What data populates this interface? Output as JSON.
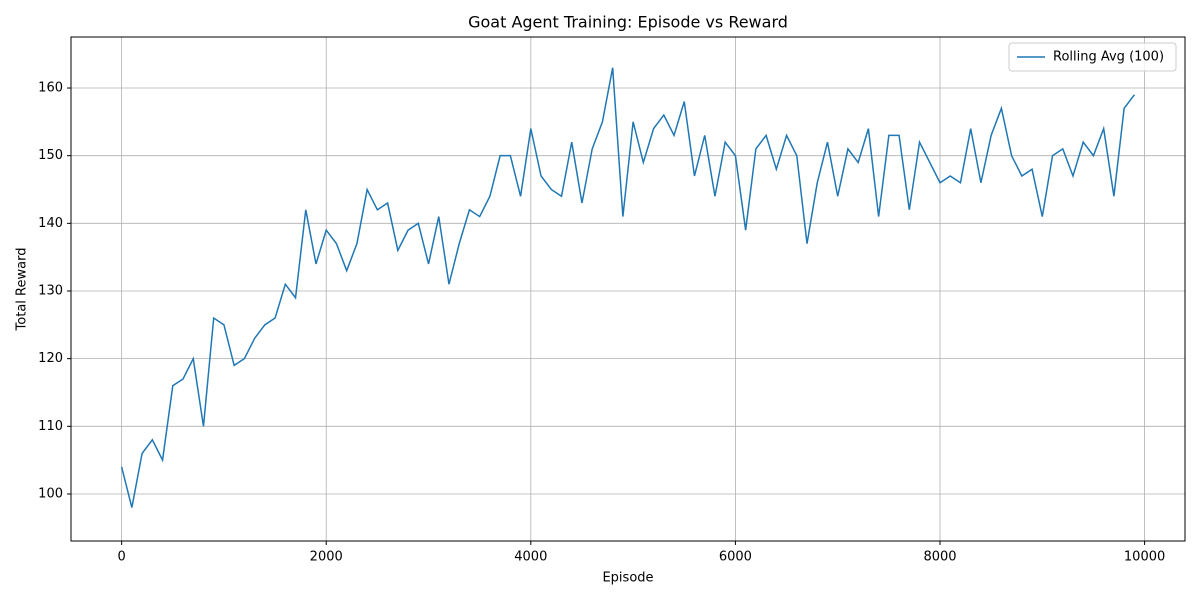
{
  "chart_data": {
    "type": "line",
    "title": "Goat Agent Training: Episode vs Reward",
    "x_label": "Episode",
    "y_label": "Total Reward",
    "x": [
      0,
      100,
      200,
      300,
      400,
      500,
      600,
      700,
      800,
      900,
      1000,
      1100,
      1200,
      1300,
      1400,
      1500,
      1600,
      1700,
      1800,
      1900,
      2000,
      2100,
      2200,
      2300,
      2400,
      2500,
      2600,
      2700,
      2800,
      2900,
      3000,
      3100,
      3200,
      3300,
      3400,
      3500,
      3600,
      3700,
      3800,
      3900,
      4000,
      4100,
      4200,
      4300,
      4400,
      4500,
      4600,
      4700,
      4800,
      4900,
      5000,
      5100,
      5200,
      5300,
      5400,
      5500,
      5600,
      5700,
      5800,
      5900,
      6000,
      6100,
      6200,
      6300,
      6400,
      6500,
      6600,
      6700,
      6800,
      6900,
      7000,
      7100,
      7200,
      7300,
      7400,
      7500,
      7600,
      7700,
      7800,
      7900,
      8000,
      8100,
      8200,
      8300,
      8400,
      8500,
      8600,
      8700,
      8800,
      8900,
      9000,
      9100,
      9200,
      9300,
      9400,
      9500,
      9600,
      9700,
      9800,
      9900
    ],
    "series": [
      {
        "name": "Rolling Avg (100)",
        "color": "#1f77b4",
        "values": [
          104,
          98,
          106,
          108,
          105,
          116,
          117,
          120,
          110,
          126,
          125,
          119,
          120,
          123,
          125,
          126,
          131,
          129,
          142,
          134,
          139,
          137,
          133,
          137,
          145,
          142,
          143,
          136,
          139,
          140,
          134,
          141,
          131,
          137,
          142,
          141,
          144,
          150,
          150,
          144,
          154,
          147,
          145,
          144,
          152,
          143,
          151,
          155,
          163,
          141,
          155,
          149,
          154,
          156,
          153,
          158,
          147,
          153,
          144,
          152,
          150,
          139,
          151,
          153,
          148,
          153,
          150,
          137,
          146,
          152,
          144,
          151,
          149,
          154,
          141,
          153,
          153,
          142,
          152,
          149,
          146,
          147,
          146,
          154,
          146,
          153,
          157,
          150,
          147,
          148,
          141,
          150,
          151,
          147,
          152,
          150,
          154,
          144,
          157,
          159
        ]
      }
    ],
    "xlim": [
      -495,
      10395
    ],
    "xticks": [
      0,
      2000,
      4000,
      6000,
      8000,
      10000
    ],
    "ylim": [
      93.05,
      167.54
    ],
    "yticks": [
      100,
      110,
      120,
      130,
      140,
      150,
      160
    ],
    "grid": true,
    "legend": "upper-right"
  }
}
